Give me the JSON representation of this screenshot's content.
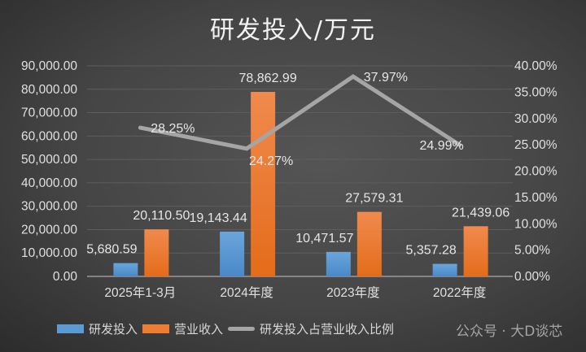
{
  "chart_data": {
    "type": "bar+line",
    "title": "研发投入/万元",
    "categories": [
      "2025年1-3月",
      "2024年度",
      "2023年度",
      "2022年度"
    ],
    "series": [
      {
        "name": "研发投入",
        "type": "bar",
        "axis": "left",
        "color": "#5b9bd5",
        "values": [
          5680.59,
          19143.44,
          10471.57,
          5357.28
        ],
        "labels": [
          "5,680.59",
          "19,143.44",
          "10,471.57",
          "5,357.28"
        ]
      },
      {
        "name": "营业收入",
        "type": "bar",
        "axis": "left",
        "color": "#ed7d31",
        "values": [
          20110.5,
          78862.99,
          27579.31,
          21439.06
        ],
        "labels": [
          "20,110.50",
          "78,862.99",
          "27,579.31",
          "21,439.06"
        ]
      },
      {
        "name": "研发投入占营业收入比例",
        "type": "line",
        "axis": "right",
        "color": "#a5a5a5",
        "values": [
          28.25,
          24.27,
          37.97,
          24.99
        ],
        "labels": [
          "28.25%",
          "24.27%",
          "37.97%",
          "24.99%"
        ]
      }
    ],
    "y_left": {
      "range": [
        0,
        90000
      ],
      "ticks": [
        "0.00",
        "10,000.00",
        "20,000.00",
        "30,000.00",
        "40,000.00",
        "50,000.00",
        "60,000.00",
        "70,000.00",
        "80,000.00",
        "90,000.00"
      ]
    },
    "y_right": {
      "range": [
        0,
        40
      ],
      "ticks": [
        "0.00%",
        "5.00%",
        "10.00%",
        "15.00%",
        "20.00%",
        "25.00%",
        "30.00%",
        "35.00%",
        "40.00%"
      ]
    },
    "grid": true,
    "legend": "bottom"
  },
  "watermark": "公众号 · 大D谈芯"
}
